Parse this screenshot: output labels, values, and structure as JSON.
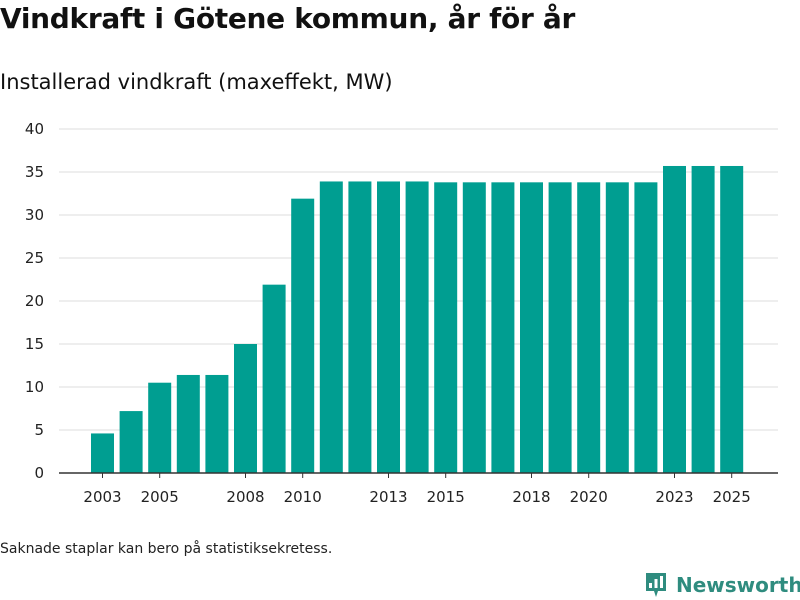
{
  "title": "Vindkraft i Götene kommun, år för år",
  "subtitle": "Installerad vindkraft (maxeffekt, MW)",
  "footnote": "Saknade staplar kan bero på statistiksekretess.",
  "brand": {
    "name": "Newsworthy",
    "logo_icon": "newsworthy-logo-icon",
    "color": "#2f8c7f"
  },
  "colors": {
    "bar": "#009e91",
    "grid": "#dddddd",
    "axis": "#333333"
  },
  "chart_data": {
    "type": "bar",
    "title": "Installerad vindkraft (maxeffekt, MW)",
    "xlabel": "",
    "ylabel": "",
    "categories": [
      2003,
      2004,
      2005,
      2006,
      2007,
      2008,
      2009,
      2010,
      2011,
      2012,
      2013,
      2014,
      2015,
      2016,
      2017,
      2018,
      2019,
      2020,
      2021,
      2022,
      2023,
      2024,
      2025
    ],
    "values": [
      4.6,
      7.2,
      10.5,
      11.4,
      11.4,
      15.0,
      21.9,
      31.9,
      33.9,
      33.9,
      33.9,
      33.9,
      33.8,
      33.8,
      33.8,
      33.8,
      33.8,
      33.8,
      33.8,
      33.8,
      35.7,
      35.7,
      35.7
    ],
    "ylim": [
      0,
      40
    ],
    "yticks": [
      0,
      5,
      10,
      15,
      20,
      25,
      30,
      35,
      40
    ],
    "xtick_labels": [
      "2003",
      "2005",
      "2008",
      "2010",
      "2013",
      "2015",
      "2018",
      "2020",
      "2023",
      "2025"
    ],
    "grid": true,
    "legend": "none"
  }
}
